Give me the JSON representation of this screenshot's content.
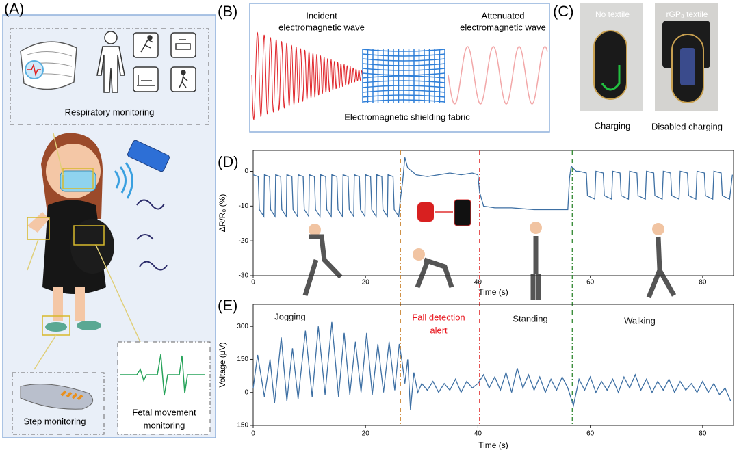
{
  "panels": {
    "A": {
      "label": "(A)",
      "respiratory": "Respiratory monitoring",
      "step": "Step monitoring",
      "fetal": [
        "Fetal movement",
        "monitoring"
      ]
    },
    "B": {
      "label": "(B)",
      "incident": [
        "Incident",
        "electromagnetic wave"
      ],
      "attenuated": [
        "Attenuated",
        "electromagnetic wave"
      ],
      "fabric": "Electromagnetic shielding fabric"
    },
    "C": {
      "label": "(C)",
      "left_title": "No textile",
      "right_title": "rGP₃ textile",
      "left_caption": "Charging",
      "right_caption": "Disabled charging"
    },
    "D": {
      "label": "(D)"
    },
    "E": {
      "label": "(E)"
    }
  },
  "chart_data": [
    {
      "type": "line",
      "ylabel": "ΔR/R₀ (%)",
      "xlabel": "Time (s)",
      "color": "#3d6fa3",
      "xlim": [
        0,
        85.5
      ],
      "ylim": [
        -30,
        6
      ],
      "xticks": [
        0,
        20,
        40,
        60,
        80
      ],
      "yticks": [
        0,
        -10,
        -20,
        -30
      ],
      "vlines": [
        {
          "x": 26.2,
          "color": "#c9802a"
        },
        {
          "x": 40.3,
          "color": "#e23b3b"
        },
        {
          "x": 56.8,
          "color": "#3d8f3d"
        }
      ],
      "x": [
        0,
        0.9,
        1.1,
        1.9,
        2,
        2.9,
        3.1,
        3.9,
        4,
        4.9,
        5.1,
        5.9,
        6,
        6.9,
        7.1,
        7.9,
        8,
        8.9,
        9.1,
        9.9,
        10,
        10.9,
        11.1,
        11.9,
        12,
        12.9,
        13.1,
        13.9,
        14,
        14.9,
        15.1,
        15.9,
        16,
        16.9,
        17.1,
        17.9,
        18,
        18.9,
        19.1,
        19.9,
        20,
        20.9,
        21.1,
        21.9,
        22,
        22.9,
        23.1,
        23.9,
        24,
        24.9,
        25.1,
        25.9,
        26.2,
        26.6,
        27,
        27.5,
        29,
        31,
        33,
        35,
        37,
        39,
        40,
        40.3,
        41,
        43,
        46,
        50,
        53,
        56,
        56.3,
        56.6,
        57.5,
        58,
        59.3,
        59.5,
        60.8,
        61,
        62.3,
        62.5,
        63.8,
        64,
        65.3,
        65.5,
        66.8,
        67,
        68.3,
        68.5,
        69.8,
        70,
        71.3,
        71.5,
        72.8,
        73,
        74.3,
        74.5,
        75.8,
        76,
        77.3,
        77.5,
        78.8,
        79,
        80.3,
        80.5,
        81.8,
        82,
        83.3,
        83.5,
        84.8,
        85.3
      ],
      "values": [
        -1,
        -1.5,
        -11,
        -13,
        -1,
        -1.5,
        -11,
        -13,
        -1,
        -1.5,
        -11,
        -13,
        -1,
        -1.5,
        -11,
        -13,
        -1,
        -1.5,
        -11,
        -13,
        -1,
        -1.5,
        -11,
        -13,
        -1,
        -1.5,
        -11,
        -13,
        -1,
        -1.5,
        -11,
        -13,
        -1,
        -1.5,
        -11,
        -13,
        -1,
        -1.5,
        -11,
        -13,
        -1,
        -1.5,
        -11,
        -13,
        -1,
        -1.5,
        -11,
        -13,
        -1,
        -1.5,
        -11,
        -13,
        -8,
        -3,
        4,
        1,
        -1,
        -1.5,
        -1,
        -0.5,
        -1,
        -0.5,
        -1,
        -6,
        -10,
        -10.5,
        -10.5,
        -11,
        -11,
        -11,
        -2,
        1.5,
        0,
        0,
        -0.5,
        -7,
        -8,
        0,
        -0.5,
        -7,
        -8,
        0,
        -0.5,
        -7,
        -8,
        0,
        -0.5,
        -7,
        -8,
        0,
        -0.5,
        -7,
        -8,
        0,
        -0.5,
        -7,
        -8,
        0,
        -0.5,
        -7,
        -8,
        0,
        -0.5,
        -7,
        -8,
        0,
        -0.5,
        -7,
        -8,
        -1
      ]
    },
    {
      "type": "line",
      "ylabel": "Voltage (μV)",
      "xlabel": "Time (s)",
      "color": "#3d6fa3",
      "xlim": [
        0,
        85.5
      ],
      "ylim": [
        -150,
        400
      ],
      "xticks": [
        0,
        20,
        40,
        60,
        80
      ],
      "yticks": [
        -150,
        0,
        150,
        300
      ],
      "annotations": [
        {
          "lines": [
            "Jogging"
          ],
          "color": "#111111"
        },
        {
          "lines": [
            "Fall detection",
            "alert"
          ],
          "color": "#e8141c"
        },
        {
          "lines": [
            "Standing"
          ],
          "color": "#111111"
        },
        {
          "lines": [
            "Walking"
          ],
          "color": "#111111"
        }
      ],
      "x": [
        0,
        0.8,
        2,
        3,
        3.8,
        5,
        6,
        7,
        8,
        9.3,
        10.5,
        11.6,
        12.8,
        14,
        15.2,
        16.2,
        17.2,
        18.2,
        19.2,
        20.2,
        21.2,
        22.2,
        23.2,
        24.2,
        25.2,
        26,
        26.5,
        27,
        27.5,
        28,
        28.6,
        29.3,
        30,
        31,
        32,
        33,
        34,
        35,
        36,
        37,
        38,
        39,
        40,
        41,
        42,
        43,
        44,
        45,
        46,
        47,
        48,
        49,
        50,
        51,
        52,
        53,
        54,
        55,
        56,
        57,
        58,
        59,
        60,
        61,
        62,
        63,
        64,
        65,
        66,
        67,
        68,
        69,
        70,
        71,
        72,
        73,
        74,
        75,
        76,
        77,
        78,
        79,
        80,
        81,
        82,
        83,
        84,
        85
      ],
      "values": [
        20,
        170,
        -20,
        150,
        -50,
        250,
        -40,
        200,
        -30,
        280,
        -20,
        300,
        -10,
        320,
        -20,
        270,
        -10,
        230,
        0,
        270,
        -10,
        220,
        0,
        230,
        10,
        220,
        140,
        40,
        150,
        -80,
        90,
        0,
        40,
        10,
        50,
        0,
        40,
        10,
        60,
        0,
        50,
        20,
        40,
        80,
        20,
        70,
        10,
        90,
        0,
        110,
        20,
        80,
        10,
        70,
        0,
        60,
        10,
        70,
        20,
        -60,
        60,
        10,
        70,
        0,
        50,
        10,
        60,
        0,
        70,
        20,
        80,
        10,
        60,
        0,
        50,
        10,
        60,
        0,
        50,
        10,
        40,
        0,
        50,
        0,
        40,
        -10,
        20,
        -40
      ]
    }
  ]
}
